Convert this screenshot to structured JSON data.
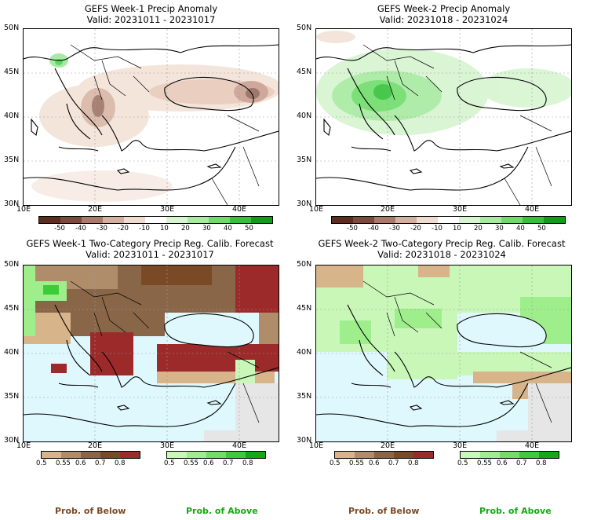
{
  "panels": [
    {
      "title": "GEFS Week-1 Precip Anomaly",
      "valid": "Valid: 20231011 - 20231017"
    },
    {
      "title": "GEFS Week-2 Precip Anomaly",
      "valid": "Valid: 20231018 - 20231024"
    },
    {
      "title": "GEFS Week-1 Two-Category Precip Reg. Calib. Forecast",
      "valid": "Valid: 20231011 - 20231017"
    },
    {
      "title": "GEFS Week-2 Two-Category Precip Reg. Calib. Forecast",
      "valid": "Valid: 20231018 - 20231024"
    }
  ],
  "lat_ticks": [
    "50N",
    "45N",
    "40N",
    "35N",
    "30N"
  ],
  "lon_ticks": [
    "10E",
    "20E",
    "30E",
    "40E"
  ],
  "anomaly_scale": {
    "labels": [
      "-50",
      "-40",
      "-30",
      "-20",
      "-10",
      "10",
      "20",
      "30",
      "40",
      "50"
    ],
    "colors": [
      "#5a2d1e",
      "#7a4a3a",
      "#a77a6a",
      "#d4b0a0",
      "#efdcd0",
      "#ffffff",
      "#d6f5d0",
      "#a8eba0",
      "#6fdc6a",
      "#35c23a",
      "#129a1a"
    ]
  },
  "below_scale": {
    "labels": [
      "0.5",
      "0.55",
      "0.6",
      "0.7",
      "0.8"
    ],
    "colors": [
      "#d8b48a",
      "#b08d6a",
      "#8a6648",
      "#7a4a26",
      "#9c2a2a"
    ]
  },
  "above_scale": {
    "labels": [
      "0.5",
      "0.55",
      "0.6",
      "0.7",
      "0.8"
    ],
    "colors": [
      "#c8f7b8",
      "#9eef8c",
      "#6fe061",
      "#3ccc3a",
      "#11aa11"
    ]
  },
  "legend": {
    "below": "Prob. of Below",
    "above": "Prob. of Above"
  },
  "colors": {
    "below_text": "#7a4a26",
    "above_text": "#11aa11",
    "sea": "#dff8fd",
    "nodata": "#e6e6e6"
  }
}
